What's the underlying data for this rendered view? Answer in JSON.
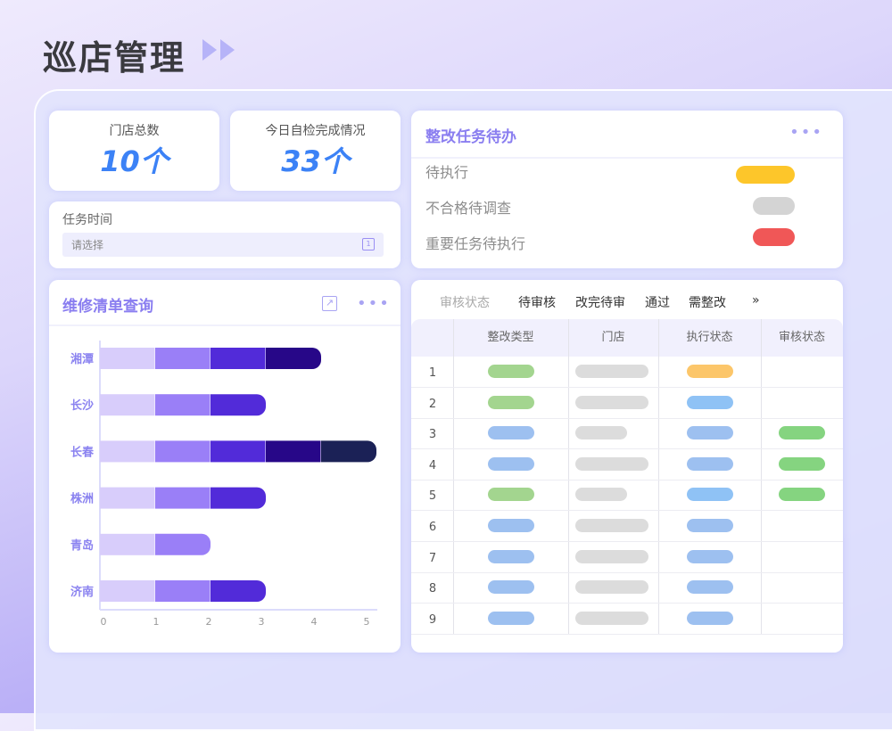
{
  "page": {
    "title": "巡店管理",
    "title_icon": "double-play-icon"
  },
  "stats": [
    {
      "label": "门店总数",
      "value": "10个"
    },
    {
      "label": "今日自检完成情况",
      "value": "33个"
    }
  ],
  "task_time": {
    "label": "任务时间",
    "placeholder": "请选择",
    "icon": "calendar-icon"
  },
  "todo": {
    "title": "整改任务待办",
    "items": [
      {
        "label": "待执行",
        "color": "#fdc62a"
      },
      {
        "label": "不合格待调查",
        "color": "#d4d4d4"
      },
      {
        "label": "重要任务待执行",
        "color": "#f05757"
      }
    ]
  },
  "repair": {
    "title": "维修清单查询"
  },
  "chart_data": {
    "type": "bar",
    "orientation": "horizontal",
    "stacked": true,
    "categories": [
      "湘潭",
      "长沙",
      "长春",
      "株洲",
      "青岛",
      "济南"
    ],
    "series": [
      {
        "values": [
          1,
          1,
          1,
          1,
          1,
          1
        ],
        "color": "#d8cdfb"
      },
      {
        "values": [
          1,
          1,
          1,
          1,
          1,
          1
        ],
        "color": "#9a7ff7"
      },
      {
        "values": [
          1,
          1,
          1,
          1,
          0,
          1
        ],
        "color": "#522bd9"
      },
      {
        "values": [
          1,
          0,
          1,
          0,
          0,
          0
        ],
        "color": "#270788"
      },
      {
        "values": [
          0,
          0,
          1,
          0,
          0,
          0
        ],
        "color": "#1b2156"
      }
    ],
    "xticks": [
      "0",
      "1",
      "2",
      "3",
      "4",
      "5"
    ],
    "xlim": [
      0,
      5
    ],
    "grid": false
  },
  "review": {
    "filter_label": "审核状态",
    "tabs": [
      "待审核",
      "改完待审",
      "通过",
      "需整改"
    ],
    "more": "»",
    "columns": [
      "整改类型",
      "门店",
      "执行状态",
      "审核状态"
    ],
    "rows": [
      {
        "n": "1",
        "c": [
          "#a3d58f",
          "#dcdcdc",
          "#fcc66a",
          null
        ],
        "short": false
      },
      {
        "n": "2",
        "c": [
          "#a3d58f",
          "#dcdcdc",
          "#8fc2f5",
          null
        ],
        "short": false
      },
      {
        "n": "3",
        "c": [
          "#9dc0f0",
          "#dcdcdc",
          "#9dc0f0",
          "#85d480"
        ],
        "short": true
      },
      {
        "n": "4",
        "c": [
          "#9dc0f0",
          "#dcdcdc",
          "#9dc0f0",
          "#85d480"
        ],
        "short": false
      },
      {
        "n": "5",
        "c": [
          "#a3d58f",
          "#dcdcdc",
          "#8fc2f5",
          "#85d480"
        ],
        "short": true
      },
      {
        "n": "6",
        "c": [
          "#9dc0f0",
          "#dcdcdc",
          "#9dc0f0",
          null
        ],
        "short": false
      },
      {
        "n": "7",
        "c": [
          "#9dc0f0",
          "#dcdcdc",
          "#9dc0f0",
          null
        ],
        "short": false
      },
      {
        "n": "8",
        "c": [
          "#9dc0f0",
          "#dcdcdc",
          "#9dc0f0",
          null
        ],
        "short": false
      },
      {
        "n": "9",
        "c": [
          "#9dc0f0",
          "#dcdcdc",
          "#9dc0f0",
          null
        ],
        "short": false
      }
    ]
  }
}
